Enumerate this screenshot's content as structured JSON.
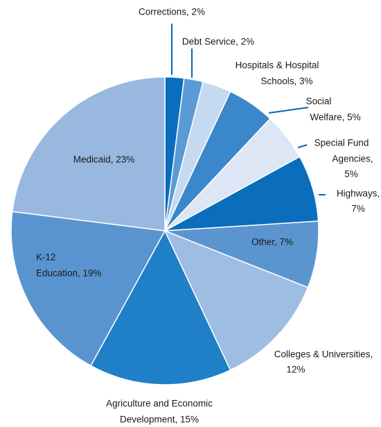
{
  "chart_data": {
    "type": "pie",
    "labels": [
      [
        "Corrections, 2%"
      ],
      [
        "Debt Service, 2%"
      ],
      [
        "Hospitals & Hospital",
        "Schools, 3%"
      ],
      [
        "Social",
        "Welfare, 5%"
      ],
      [
        "Special Fund",
        "Agencies,",
        "5%"
      ],
      [
        "Highways,",
        "7%"
      ],
      [
        "Other, 7%"
      ],
      [
        "Colleges & Universities,",
        "12%"
      ],
      [
        "Agriculture and Economic",
        "Development, 15%"
      ],
      [
        "K-12",
        "Education, 19%"
      ],
      [
        "Medicaid, 23%"
      ]
    ],
    "values": [
      2,
      2,
      3,
      5,
      5,
      7,
      7,
      12,
      15,
      19,
      23
    ],
    "colors": [
      "#0a6ebd",
      "#5b9bd5",
      "#c5d9f1",
      "#3a87cb",
      "#dce6f4",
      "#0a6ebd",
      "#5b95d0",
      "#9dbde3",
      "#1f80c8",
      "#5a94d0",
      "#98b8e0"
    ]
  }
}
